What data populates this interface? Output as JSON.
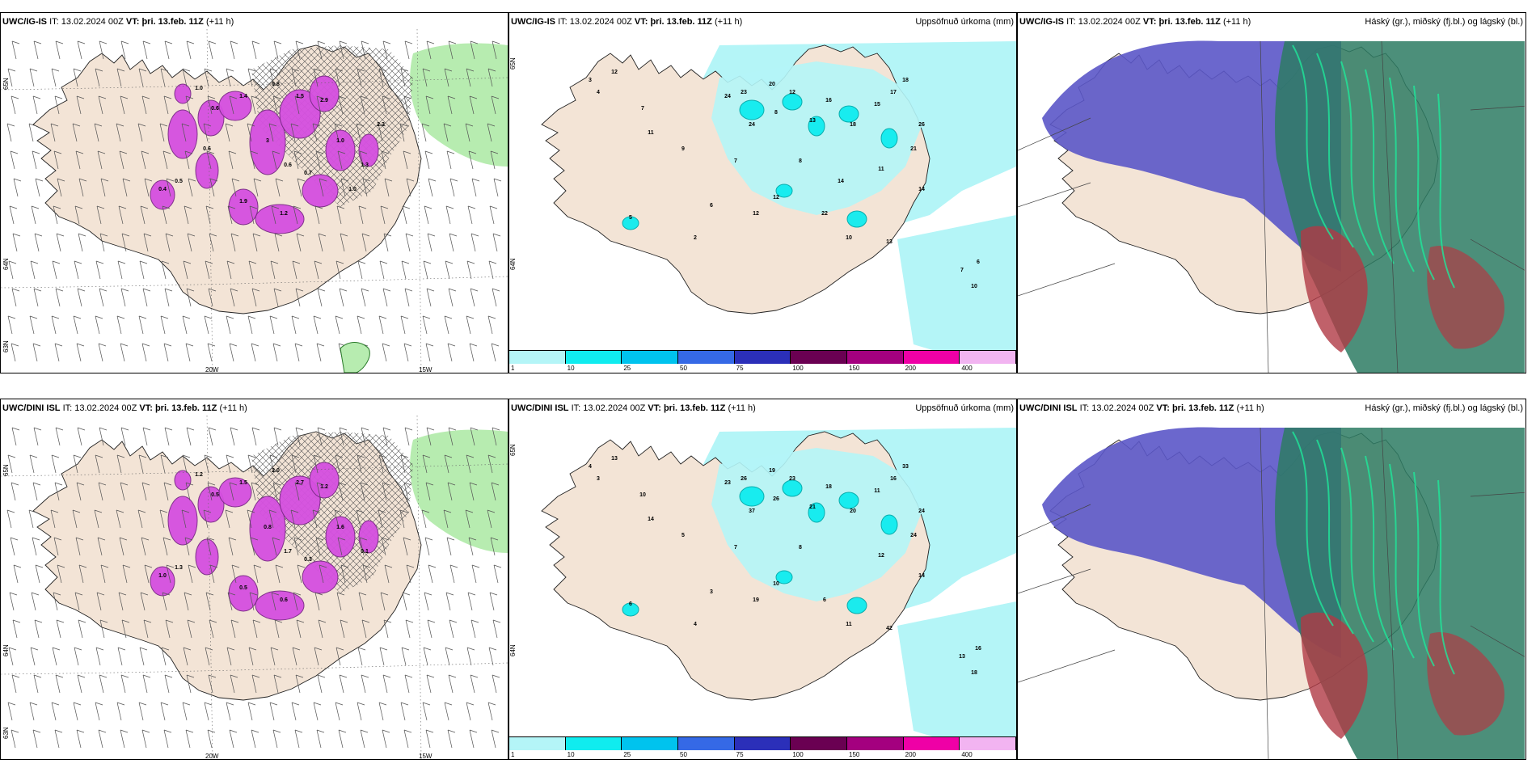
{
  "panels": [
    {
      "id": "p1",
      "model": "UWC/IG-IS",
      "it_label": "IT:",
      "it_value": "13.02.2024 00Z",
      "vt_label": "VT:",
      "vt_value": "þri. 13.feb. 11Z",
      "lead": "(+11 h)",
      "right_title": "",
      "axis_labels": [
        "65N",
        "64N",
        "63N",
        "20W",
        "15W"
      ]
    },
    {
      "id": "p2",
      "model": "UWC/IG-IS",
      "it_label": "IT:",
      "it_value": "13.02.2024 00Z",
      "vt_label": "VT:",
      "vt_value": "þri. 13.feb. 11Z",
      "lead": "(+11 h)",
      "right_title": "Uppsöfnuð úrkoma (mm)",
      "axis_labels": [
        "65N",
        "64N"
      ]
    },
    {
      "id": "p3",
      "model": "UWC/IG-IS",
      "it_label": "IT:",
      "it_value": "13.02.2024 00Z",
      "vt_label": "VT:",
      "vt_value": "þri. 13.feb. 11Z",
      "lead": "(+11 h)",
      "right_title": "Háský (gr.), miðský (fj.bl.) og lágský (bl.)",
      "axis_labels": []
    },
    {
      "id": "p4",
      "model": "UWC/DINI ISL",
      "it_label": "IT:",
      "it_value": "13.02.2024 00Z",
      "vt_label": "VT:",
      "vt_value": "þri. 13.feb. 11Z",
      "lead": "(+11 h)",
      "right_title": "",
      "axis_labels": [
        "65N",
        "64N",
        "63N",
        "20W",
        "15W"
      ]
    },
    {
      "id": "p5",
      "model": "UWC/DINI ISL",
      "it_label": "IT:",
      "it_value": "13.02.2024 00Z",
      "vt_label": "VT:",
      "vt_value": "þri. 13.feb. 11Z",
      "lead": "(+11 h)",
      "right_title": "Uppsöfnuð úrkoma (mm)",
      "axis_labels": [
        "65N",
        "64N"
      ]
    },
    {
      "id": "p6",
      "model": "UWC/DINI ISL",
      "it_label": "IT:",
      "it_value": "13.02.2024 00Z",
      "vt_label": "VT:",
      "vt_value": "þri. 13.feb. 11Z",
      "lead": "(+11 h)",
      "right_title": "Háský (gr.), miðský (fj.bl.) og lágský (bl.)",
      "axis_labels": []
    }
  ],
  "colorbar": {
    "ticks": [
      "1",
      "10",
      "25",
      "50",
      "75",
      "100",
      "150",
      "200",
      "400"
    ],
    "colors": [
      "#b4f5f7",
      "#10ecef",
      "#00c3ee",
      "#3569e6",
      "#2b2fb9",
      "#6a0052",
      "#a4007f",
      "#ef00a6",
      "#f2b4f1"
    ]
  },
  "precip_labels_top": [
    "3",
    "4",
    "12",
    "7",
    "11",
    "24",
    "23",
    "20",
    "24",
    "8",
    "12",
    "13",
    "16",
    "18",
    "15",
    "17",
    "18",
    "26",
    "21",
    "11",
    "8",
    "12",
    "22",
    "10",
    "13",
    "14",
    "7",
    "6",
    "10",
    "5",
    "2",
    "6",
    "7",
    "9",
    "12",
    "14"
  ],
  "precip_labels_bottom": [
    "4",
    "3",
    "13",
    "10",
    "14",
    "23",
    "26",
    "19",
    "37",
    "26",
    "23",
    "21",
    "18",
    "20",
    "11",
    "16",
    "33",
    "24",
    "24",
    "12",
    "8",
    "10",
    "6",
    "11",
    "42",
    "14",
    "13",
    "16",
    "18",
    "6",
    "4",
    "3",
    "7",
    "5",
    "19"
  ],
  "wind_values_top": [
    "1.0",
    "0.6",
    "1.4",
    "0.8",
    "1.5",
    "2.9",
    "3",
    "0.6",
    "0.7",
    "1.0",
    "1.3",
    "1.2",
    "1.9",
    "0.5",
    "0.4",
    "0.6",
    "2.3",
    "1.0"
  ],
  "wind_values_bottom": [
    "1.2",
    "0.5",
    "1.5",
    "2.0",
    "2.7",
    "1.2",
    "0.8",
    "1.7",
    "0.3",
    "1.6",
    "0.1",
    "0.6",
    "0.5",
    "1.3",
    "1.0"
  ],
  "colors": {
    "land": "#f3e4d6",
    "coast": "#222222",
    "snow": "#d54fe0",
    "snow_dark": "#7a2a86",
    "green": "#b7ecb0",
    "cyan_light": "#b4f5f7",
    "cyan": "#10ecef",
    "cloud_blue": "#5b56c8",
    "cloud_green": "#2d7b63",
    "cloud_red": "#b03a45"
  }
}
